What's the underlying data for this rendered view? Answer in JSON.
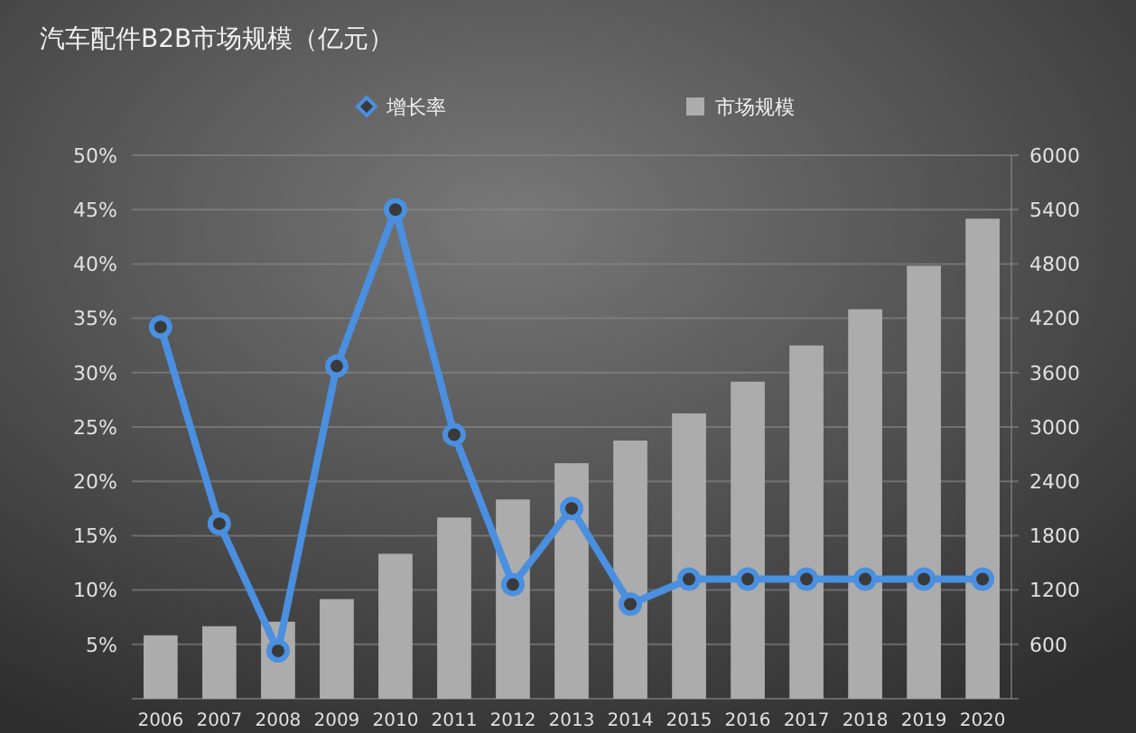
{
  "chart_data": {
    "type": "bar",
    "title": "汽车配件B2B市场规模（亿元）",
    "categories": [
      "2006",
      "2007",
      "2008",
      "2009",
      "2010",
      "2011",
      "2012",
      "2013",
      "2014",
      "2015",
      "2016",
      "2017",
      "2018",
      "2019",
      "2020"
    ],
    "series": [
      {
        "name": "增长率",
        "type": "line",
        "axis": "y",
        "color": "#4a8fe0",
        "values": [
          34.2,
          16.1,
          4.4,
          30.6,
          45,
          24.3,
          10.5,
          17.5,
          8.7,
          11,
          11,
          11,
          11,
          11,
          11
        ]
      },
      {
        "name": "市场规模",
        "axis": "y2",
        "color": "#acacac",
        "values": [
          700,
          800,
          850,
          1100,
          1600,
          2000,
          2200,
          2600,
          2850,
          3150,
          3500,
          3900,
          4300,
          4780,
          5300
        ]
      }
    ],
    "ylim": [
      0,
      50
    ],
    "yticks": [
      {
        "value": 0,
        "label": null
      },
      {
        "value": 5,
        "label": "5%"
      },
      {
        "value": 10,
        "label": "10%"
      },
      {
        "value": 15,
        "label": "15%"
      },
      {
        "value": 20,
        "label": "20%"
      },
      {
        "value": 25,
        "label": "25%"
      },
      {
        "value": 30,
        "label": "30%"
      },
      {
        "value": 35,
        "label": "35%"
      },
      {
        "value": 40,
        "label": "40%"
      },
      {
        "value": 45,
        "label": "45%"
      },
      {
        "value": 50,
        "label": "50%"
      }
    ],
    "y2lim": [
      0,
      6000
    ],
    "y2ticks": [
      {
        "value": 0,
        "label": null
      },
      600,
      1200,
      1800,
      2400,
      3000,
      3600,
      4200,
      4800,
      5400,
      6000
    ],
    "grid": "y",
    "legend": "top",
    "marker": "circle",
    "line_style": "solid"
  }
}
